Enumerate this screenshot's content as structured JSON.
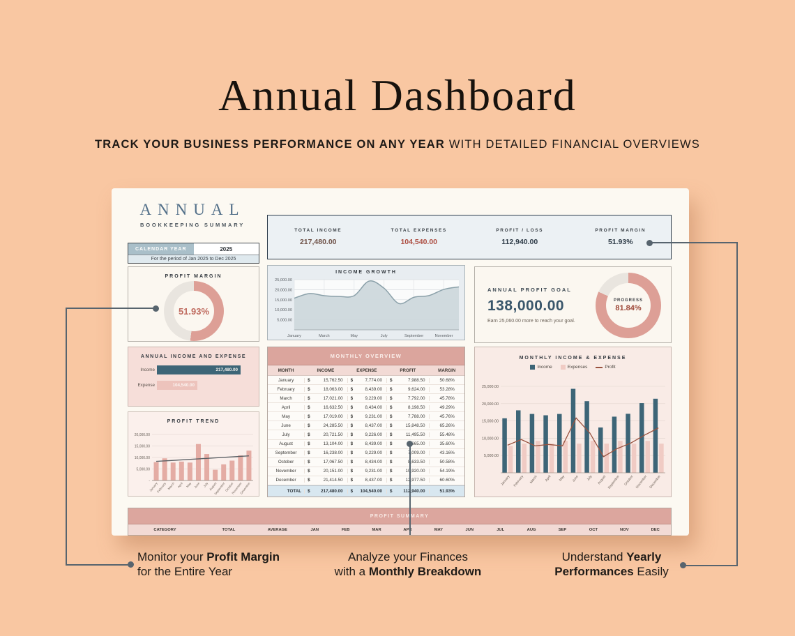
{
  "page": {
    "title": "Annual Dashboard",
    "subtitle_bold": "TRACK YOUR BUSINESS PERFORMANCE ON ANY YEAR",
    "subtitle_regular": " WITH DETAILED FINANCIAL OVERVIEWS"
  },
  "colors": {
    "salmon": "#dd9f96",
    "track": "#e9e5df",
    "teal_bar": "#3d6577",
    "pink_bar": "#f0cbc4",
    "profit_line": "#99523f",
    "trend_line": "#5b6065",
    "area_fill": "#cdd8dc",
    "area_line": "#8aa0a9",
    "connector": "#57646e",
    "income_value": "#6e5147",
    "expense_value": "#ad4f43",
    "dark_value": "#303d49"
  },
  "dashboard": {
    "brand": {
      "title": "ANNUAL",
      "subtitle": "BOOKKEEPING SUMMARY"
    },
    "calendar": {
      "label": "CALENDAR YEAR",
      "year": "2025",
      "period": "For the period of Jan 2025 to Dec 2025"
    },
    "summary": {
      "metrics": [
        {
          "label": "TOTAL INCOME",
          "value": "217,480.00",
          "color": "#6e5147"
        },
        {
          "label": "TOTAL EXPENSES",
          "value": "104,540.00",
          "color": "#ad4f43"
        },
        {
          "label": "PROFIT / LOSS",
          "value": "112,940.00",
          "color": "#303d49"
        },
        {
          "label": "PROFIT MARGIN",
          "value": "51.93%",
          "color": "#303d49"
        }
      ]
    },
    "profit_margin_card": {
      "title": "PROFIT MARGIN",
      "value": "51.93%",
      "percent": 51.93
    },
    "income_growth_card": {
      "title": "INCOME GROWTH"
    },
    "goal_card": {
      "title": "ANNUAL PROFIT GOAL",
      "value": "138,000.00",
      "note": "Earn 25,060.00 more to reach your goal.",
      "progress_label": "PROGRESS",
      "progress_value": "81.84%",
      "percent": 81.84
    },
    "annual_ie_card": {
      "title": "ANNUAL INCOME AND EXPENSE",
      "rows": [
        {
          "label": "Income",
          "value": "217,480.00"
        },
        {
          "label": "Expense",
          "value": "104,540.00"
        }
      ]
    },
    "profit_trend_card": {
      "title": "PROFIT TREND"
    },
    "monthly_overview": {
      "title": "MONTHLY OVERVIEW",
      "columns": [
        "MONTH",
        "INCOME",
        "EXPENSE",
        "PROFIT",
        "MARGIN"
      ],
      "currency": "$",
      "rows": [
        {
          "month": "January",
          "income": "15,762.50",
          "expense": "7,774.00",
          "profit": "7,988.50",
          "margin": "50.68%"
        },
        {
          "month": "February",
          "income": "18,063.00",
          "expense": "8,439.00",
          "profit": "9,624.00",
          "margin": "53.28%"
        },
        {
          "month": "March",
          "income": "17,021.00",
          "expense": "9,229.00",
          "profit": "7,792.00",
          "margin": "45.78%"
        },
        {
          "month": "April",
          "income": "16,632.50",
          "expense": "8,434.00",
          "profit": "8,198.50",
          "margin": "49.29%"
        },
        {
          "month": "May",
          "income": "17,019.00",
          "expense": "9,231.00",
          "profit": "7,788.00",
          "margin": "45.76%"
        },
        {
          "month": "June",
          "income": "24,285.50",
          "expense": "8,437.00",
          "profit": "15,848.50",
          "margin": "65.26%"
        },
        {
          "month": "July",
          "income": "20,721.50",
          "expense": "9,226.00",
          "profit": "11,495.50",
          "margin": "55.48%"
        },
        {
          "month": "August",
          "income": "13,104.00",
          "expense": "8,439.00",
          "profit": "4,665.00",
          "margin": "35.60%"
        },
        {
          "month": "September",
          "income": "16,238.00",
          "expense": "9,229.00",
          "profit": "7,009.00",
          "margin": "43.16%"
        },
        {
          "month": "October",
          "income": "17,067.50",
          "expense": "8,434.00",
          "profit": "8,633.50",
          "margin": "50.58%"
        },
        {
          "month": "November",
          "income": "20,151.00",
          "expense": "9,231.00",
          "profit": "10,920.00",
          "margin": "54.19%"
        },
        {
          "month": "December",
          "income": "21,414.50",
          "expense": "8,437.00",
          "profit": "12,977.50",
          "margin": "60.60%"
        }
      ],
      "total": {
        "label": "TOTAL",
        "income": "217,480.00",
        "expense": "104,540.00",
        "profit": "112,940.00",
        "margin": "51.93%"
      }
    },
    "monthly_chart_card": {
      "title": "MONTHLY INCOME & EXPENSE",
      "legend": [
        "Income",
        "Expenses",
        "Profit"
      ]
    },
    "profit_summary": {
      "title": "PROFIT SUMMARY",
      "columns": [
        "CATEGORY",
        "TOTAL",
        "AVERAGE",
        "JAN",
        "FEB",
        "MAR",
        "APR",
        "MAY",
        "JUN",
        "JUL",
        "AUG",
        "SEP",
        "OCT",
        "NOV",
        "DEC"
      ]
    }
  },
  "callouts": [
    {
      "lines": [
        [
          {
            "t": "Monitor your ",
            "b": false
          },
          {
            "t": "Profit Margin",
            "b": true
          }
        ],
        [
          {
            "t": "for the Entire Year",
            "b": false
          }
        ]
      ]
    },
    {
      "lines": [
        [
          {
            "t": "Analyze your Finances",
            "b": false
          }
        ],
        [
          {
            "t": "with a ",
            "b": false
          },
          {
            "t": "Monthly Breakdown",
            "b": true
          }
        ]
      ]
    },
    {
      "lines": [
        [
          {
            "t": "Understand ",
            "b": false
          },
          {
            "t": "Yearly",
            "b": true
          }
        ],
        [
          {
            "t": "Performances",
            "b": true
          },
          {
            "t": " Easily",
            "b": false
          }
        ]
      ]
    }
  ],
  "chart_data": [
    {
      "id": "profit_margin_donut",
      "type": "pie",
      "title": "PROFIT MARGIN",
      "labels": [
        "Profit Margin",
        "Remainder"
      ],
      "values": [
        51.93,
        48.07
      ]
    },
    {
      "id": "goal_progress_donut",
      "type": "pie",
      "title": "PROGRESS",
      "labels": [
        "Progress",
        "Remaining"
      ],
      "values": [
        81.84,
        18.16
      ]
    },
    {
      "id": "income_growth",
      "type": "area",
      "title": "INCOME GROWTH",
      "x": [
        "January",
        "February",
        "March",
        "April",
        "May",
        "June",
        "July",
        "August",
        "September",
        "October",
        "November",
        "December"
      ],
      "values": [
        15762.5,
        18063,
        17021,
        16632.5,
        17019,
        24285.5,
        20721.5,
        13104,
        16238,
        17067.5,
        20151,
        21414.5
      ],
      "ylim": [
        0,
        25000
      ],
      "ytick_step": 5000,
      "xticks_shown": [
        "January",
        "March",
        "May",
        "July",
        "September",
        "November"
      ],
      "grid": true
    },
    {
      "id": "annual_income_expense",
      "type": "bar",
      "categories": [
        "Income",
        "Expense"
      ],
      "values": [
        217480,
        104540
      ]
    },
    {
      "id": "profit_trend",
      "type": "bar",
      "title": "PROFIT TREND",
      "categories": [
        "January",
        "February",
        "March",
        "April",
        "May",
        "June",
        "July",
        "August",
        "September",
        "October",
        "November",
        "December"
      ],
      "values": [
        7988.5,
        9624,
        7792,
        8198.5,
        7788,
        15848.5,
        11495.5,
        4665,
        7009,
        8633.5,
        10920,
        12977.5
      ],
      "trendline": [
        8300,
        10700
      ],
      "ylim": [
        0,
        20000
      ],
      "ytick_step": 5000,
      "grid": true
    },
    {
      "id": "monthly_income_expense",
      "type": "bar",
      "title": "MONTHLY INCOME & EXPENSE",
      "categories": [
        "January",
        "February",
        "March",
        "April",
        "May",
        "June",
        "July",
        "August",
        "September",
        "October",
        "November",
        "December"
      ],
      "series": [
        {
          "name": "Income",
          "type": "bar",
          "values": [
            15762.5,
            18063,
            17021,
            16632.5,
            17019,
            24285.5,
            20721.5,
            13104,
            16238,
            17067.5,
            20151,
            21414.5
          ]
        },
        {
          "name": "Expenses",
          "type": "bar",
          "values": [
            7774,
            8439,
            9229,
            8434,
            9231,
            8437,
            9226,
            8439,
            9229,
            8434,
            9231,
            8437
          ]
        },
        {
          "name": "Profit",
          "type": "line",
          "values": [
            7988.5,
            9624,
            7792,
            8198.5,
            7788,
            15848.5,
            11495.5,
            4665,
            7009,
            8633.5,
            10920,
            12977.5
          ]
        }
      ],
      "ylim": [
        0,
        25000
      ],
      "ytick_step": 5000,
      "legend_position": "top",
      "grid": true
    }
  ]
}
